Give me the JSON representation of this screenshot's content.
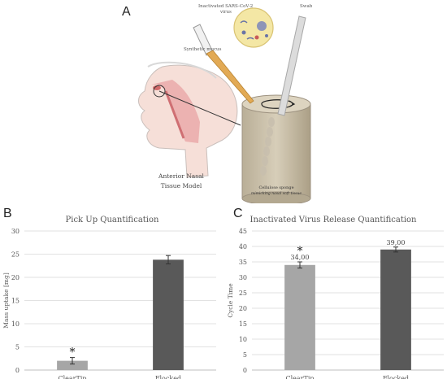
{
  "panels": {
    "a": {
      "letter": "A"
    },
    "b": {
      "letter": "B"
    },
    "c": {
      "letter": "C"
    }
  },
  "illustration": {
    "virus_label_line1": "Inactivated SARS-CoV-2",
    "virus_label_line2": "virus",
    "swab_label": "Swab",
    "mucus_label": "Synthetic mucus",
    "model_label_line1": "Anterior Nasal",
    "model_label_line2": "Tissue Model",
    "sponge_label_line1": "Cellulose sponge",
    "sponge_label_line2": "mimicking nasal soft tissue"
  },
  "chart_data": [
    {
      "type": "bar",
      "title": "Pick Up Quantification",
      "ylabel": "Mass uptake [mg]",
      "xlabel": "",
      "categories": [
        "ClearTip",
        "Flocked"
      ],
      "values": [
        2.0,
        23.8
      ],
      "errors": [
        0.7,
        0.9
      ],
      "ylim": [
        0,
        30
      ],
      "yticks": [
        0,
        5,
        10,
        15,
        20,
        25,
        30
      ],
      "annotations": [
        {
          "category": "ClearTip",
          "text": "*"
        }
      ],
      "colors": [
        "#a6a6a6",
        "#595959"
      ],
      "grid": true
    },
    {
      "type": "bar",
      "title": "Inactivated Virus Release Quantification",
      "ylabel": "Cycle Time",
      "xlabel": "",
      "categories": [
        "ClearTip",
        "Flocked"
      ],
      "values": [
        34.0,
        39.0
      ],
      "value_labels": [
        "34,00",
        "39,00"
      ],
      "errors": [
        1.0,
        0.8
      ],
      "ylim": [
        0,
        45
      ],
      "yticks": [
        0,
        5,
        10,
        15,
        20,
        25,
        30,
        35,
        40,
        45
      ],
      "annotations": [
        {
          "category": "ClearTip",
          "text": "*"
        }
      ],
      "colors": [
        "#a6a6a6",
        "#595959"
      ],
      "grid": true
    }
  ]
}
